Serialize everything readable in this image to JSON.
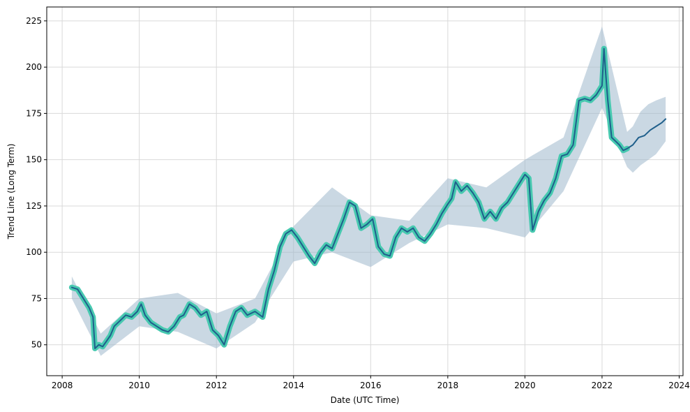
{
  "chart_data": {
    "type": "line",
    "title": "",
    "xlabel": "Date (UTC Time)",
    "ylabel": "Trend Line (Long Term)",
    "xlim": [
      2007.6,
      2024.1
    ],
    "ylim": [
      33.3,
      232.5
    ],
    "grid": true,
    "x_ticks": [
      2008,
      2010,
      2012,
      2014,
      2016,
      2018,
      2020,
      2022,
      2024
    ],
    "x_tick_labels": [
      "2008",
      "2010",
      "2012",
      "2014",
      "2016",
      "2018",
      "2020",
      "2022",
      "2024"
    ],
    "y_ticks": [
      50,
      75,
      100,
      125,
      150,
      175,
      200,
      225
    ],
    "y_tick_labels": [
      "50",
      "75",
      "100",
      "125",
      "150",
      "175",
      "200",
      "225"
    ],
    "colors": {
      "actual_line": "#48c9b0",
      "trend_line": "#1f5f8b",
      "band_fill": "#9fb8cc",
      "grid": "#d9d9d9"
    },
    "series": [
      {
        "role": "actual",
        "style": "thick-line",
        "x": [
          2008.25,
          2008.4,
          2008.55,
          2008.7,
          2008.8,
          2008.85,
          2008.95,
          2009.05,
          2009.15,
          2009.25,
          2009.35,
          2009.5,
          2009.65,
          2009.8,
          2009.95,
          2010.05,
          2010.15,
          2010.3,
          2010.45,
          2010.6,
          2010.75,
          2010.9,
          2011.05,
          2011.15,
          2011.3,
          2011.45,
          2011.6,
          2011.75,
          2011.9,
          2012.05,
          2012.2,
          2012.35,
          2012.5,
          2012.65,
          2012.8,
          2013.0,
          2013.2,
          2013.35,
          2013.5,
          2013.65,
          2013.8,
          2013.95,
          2014.1,
          2014.25,
          2014.4,
          2014.55,
          2014.7,
          2014.85,
          2015.0,
          2015.15,
          2015.3,
          2015.45,
          2015.6,
          2015.75,
          2015.9,
          2016.05,
          2016.2,
          2016.35,
          2016.5,
          2016.65,
          2016.8,
          2016.95,
          2017.1,
          2017.25,
          2017.4,
          2017.55,
          2017.7,
          2017.85,
          2018.0,
          2018.1,
          2018.2,
          2018.35,
          2018.5,
          2018.65,
          2018.8,
          2018.95,
          2019.1,
          2019.25,
          2019.4,
          2019.55,
          2019.7,
          2019.85,
          2020.0,
          2020.1,
          2020.15,
          2020.2,
          2020.35,
          2020.5,
          2020.65,
          2020.8,
          2020.95,
          2021.1,
          2021.25,
          2021.4,
          2021.55,
          2021.7,
          2021.85,
          2022.0,
          2022.05,
          2022.1,
          2022.15,
          2022.25,
          2022.35,
          2022.45,
          2022.55,
          2022.65
        ],
        "y": [
          81,
          80,
          75,
          70,
          65,
          48,
          50,
          49,
          52,
          55,
          60,
          63,
          66,
          65,
          68,
          72,
          66,
          62,
          60,
          58,
          57,
          60,
          65,
          66,
          72,
          70,
          66,
          68,
          58,
          55,
          50,
          60,
          68,
          70,
          66,
          68,
          65,
          80,
          90,
          103,
          110,
          112,
          108,
          103,
          98,
          94,
          100,
          104,
          102,
          110,
          118,
          127,
          125,
          113,
          115,
          118,
          103,
          99,
          98,
          108,
          113,
          111,
          113,
          108,
          106,
          110,
          115,
          121,
          126,
          129,
          138,
          133,
          136,
          132,
          127,
          118,
          122,
          118,
          124,
          127,
          132,
          137,
          142,
          140,
          125,
          112,
          122,
          128,
          132,
          140,
          152,
          153,
          158,
          182,
          183,
          182,
          185,
          190,
          210,
          195,
          182,
          162,
          160,
          158,
          155,
          156
        ]
      },
      {
        "role": "trend",
        "style": "line",
        "x": [
          2008.25,
          2008.4,
          2008.55,
          2008.7,
          2008.8,
          2008.85,
          2008.95,
          2009.05,
          2009.15,
          2009.25,
          2009.35,
          2009.5,
          2009.65,
          2009.8,
          2009.95,
          2010.05,
          2010.15,
          2010.3,
          2010.45,
          2010.6,
          2010.75,
          2010.9,
          2011.05,
          2011.15,
          2011.3,
          2011.45,
          2011.6,
          2011.75,
          2011.9,
          2012.05,
          2012.2,
          2012.35,
          2012.5,
          2012.65,
          2012.8,
          2013.0,
          2013.2,
          2013.35,
          2013.5,
          2013.65,
          2013.8,
          2013.95,
          2014.1,
          2014.25,
          2014.4,
          2014.55,
          2014.7,
          2014.85,
          2015.0,
          2015.15,
          2015.3,
          2015.45,
          2015.6,
          2015.75,
          2015.9,
          2016.05,
          2016.2,
          2016.35,
          2016.5,
          2016.65,
          2016.8,
          2016.95,
          2017.1,
          2017.25,
          2017.4,
          2017.55,
          2017.7,
          2017.85,
          2018.0,
          2018.1,
          2018.2,
          2018.35,
          2018.5,
          2018.65,
          2018.8,
          2018.95,
          2019.1,
          2019.25,
          2019.4,
          2019.55,
          2019.7,
          2019.85,
          2020.0,
          2020.1,
          2020.15,
          2020.2,
          2020.35,
          2020.5,
          2020.65,
          2020.8,
          2020.95,
          2021.1,
          2021.25,
          2021.4,
          2021.55,
          2021.7,
          2021.85,
          2022.0,
          2022.05,
          2022.1,
          2022.15,
          2022.25,
          2022.35,
          2022.45,
          2022.55,
          2022.65,
          2022.8,
          2022.95,
          2023.1,
          2023.25,
          2023.4,
          2023.55,
          2023.65
        ],
        "y": [
          81,
          80,
          75,
          70,
          65,
          48,
          50,
          49,
          52,
          55,
          60,
          63,
          66,
          65,
          68,
          72,
          66,
          62,
          60,
          58,
          57,
          60,
          65,
          66,
          72,
          70,
          66,
          68,
          58,
          55,
          50,
          60,
          68,
          70,
          66,
          68,
          65,
          80,
          90,
          103,
          110,
          112,
          108,
          103,
          98,
          94,
          100,
          104,
          102,
          110,
          118,
          127,
          125,
          113,
          115,
          118,
          103,
          99,
          98,
          108,
          113,
          111,
          113,
          108,
          106,
          110,
          115,
          121,
          126,
          129,
          138,
          133,
          136,
          132,
          127,
          118,
          122,
          118,
          124,
          127,
          132,
          137,
          142,
          140,
          125,
          112,
          122,
          128,
          132,
          140,
          152,
          153,
          158,
          182,
          183,
          182,
          185,
          190,
          210,
          195,
          182,
          162,
          160,
          158,
          155,
          156,
          158,
          162,
          163,
          166,
          168,
          170,
          172
        ]
      }
    ],
    "band": {
      "role": "confidence-interval",
      "x": [
        2008.25,
        2009.0,
        2010.0,
        2011.0,
        2012.0,
        2013.0,
        2014.0,
        2015.0,
        2016.0,
        2017.0,
        2018.0,
        2019.0,
        2020.0,
        2021.0,
        2022.0,
        2022.65,
        2022.8,
        2023.0,
        2023.2,
        2023.4,
        2023.65
      ],
      "lower": [
        75,
        44,
        60,
        57,
        48,
        62,
        95,
        100,
        92,
        105,
        115,
        113,
        108,
        133,
        178,
        146,
        143,
        147,
        150,
        153,
        160
      ],
      "upper": [
        87,
        56,
        75,
        78,
        67,
        75,
        114,
        135,
        120,
        117,
        140,
        135,
        150,
        162,
        222,
        165,
        168,
        176,
        180,
        182,
        184
      ]
    }
  }
}
